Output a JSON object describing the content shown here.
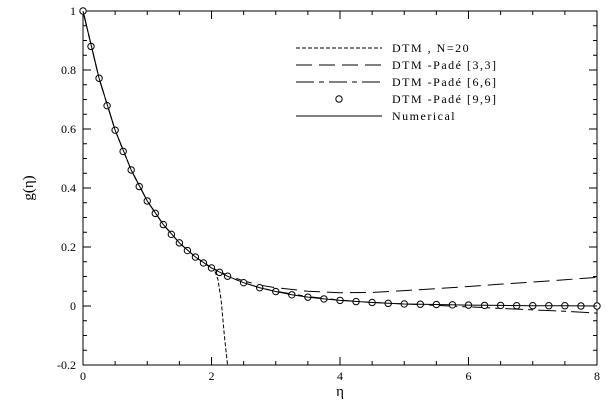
{
  "chart_data": {
    "type": "line",
    "xlabel": "η",
    "ylabel": "g(η)",
    "xlim": [
      0,
      8
    ],
    "ylim": [
      -0.2,
      1
    ],
    "xticks": [
      0,
      2,
      4,
      6,
      8
    ],
    "xtick_labels": [
      "0",
      "2",
      "4",
      "6",
      "8"
    ],
    "yticks": [
      -0.2,
      0,
      0.2,
      0.4,
      0.6,
      0.8,
      1
    ],
    "ytick_labels": [
      "-0.2",
      "0",
      "0.2",
      "0.4",
      "0.6",
      "0.8",
      "1"
    ],
    "grid": false,
    "legend_position": "top-right",
    "series": [
      {
        "name": "DTM , N=20",
        "style": "short-dash",
        "x": [
          0,
          0.25,
          0.5,
          0.75,
          1.0,
          1.25,
          1.5,
          1.75,
          1.9,
          2.0,
          2.05,
          2.1,
          2.15,
          2.2,
          2.25
        ],
        "values": [
          1,
          0.772,
          0.596,
          0.461,
          0.356,
          0.276,
          0.214,
          0.166,
          0.142,
          0.13,
          0.12,
          0.09,
          0.02,
          -0.1,
          -0.2
        ]
      },
      {
        "name": "DTM -Padé [3,3]",
        "style": "long-dash",
        "x": [
          0,
          0.25,
          0.5,
          0.75,
          1.0,
          1.25,
          1.5,
          1.75,
          2.0,
          2.25,
          2.5,
          2.75,
          3.0,
          3.5,
          4.0,
          4.5,
          5.0,
          5.5,
          6.0,
          6.5,
          7.0,
          7.5,
          8.0
        ],
        "values": [
          1,
          0.772,
          0.596,
          0.461,
          0.356,
          0.276,
          0.214,
          0.166,
          0.13,
          0.104,
          0.085,
          0.071,
          0.062,
          0.05,
          0.045,
          0.046,
          0.052,
          0.059,
          0.066,
          0.074,
          0.081,
          0.089,
          0.097
        ]
      },
      {
        "name": "DTM -Padé [6,6]",
        "style": "long-short-dash",
        "x": [
          0,
          0.25,
          0.5,
          0.75,
          1.0,
          1.25,
          1.5,
          1.75,
          2.0,
          2.25,
          2.5,
          2.75,
          3.0,
          3.5,
          4.0,
          4.5,
          5.0,
          5.5,
          6.0,
          6.5,
          7.0,
          7.5,
          8.0
        ],
        "values": [
          1,
          0.772,
          0.596,
          0.461,
          0.356,
          0.276,
          0.214,
          0.166,
          0.129,
          0.101,
          0.079,
          0.062,
          0.05,
          0.032,
          0.02,
          0.012,
          0.007,
          0.002,
          -0.003,
          -0.008,
          -0.013,
          -0.018,
          -0.024
        ]
      },
      {
        "name": "DTM -Padé [9,9]",
        "style": "circle-markers",
        "x": [
          0,
          0.125,
          0.25,
          0.375,
          0.5,
          0.625,
          0.75,
          0.875,
          1.0,
          1.125,
          1.25,
          1.375,
          1.5,
          1.625,
          1.75,
          1.875,
          2.0,
          2.125,
          2.25,
          2.5,
          2.75,
          3.0,
          3.25,
          3.5,
          3.75,
          4.0,
          4.25,
          4.5,
          4.75,
          5.0,
          5.25,
          5.5,
          5.75,
          6.0,
          6.25,
          6.5,
          6.75,
          7.0,
          7.25,
          7.5,
          7.75,
          8.0
        ],
        "values": [
          1,
          0.88,
          0.772,
          0.679,
          0.596,
          0.524,
          0.461,
          0.405,
          0.356,
          0.314,
          0.276,
          0.243,
          0.214,
          0.188,
          0.166,
          0.146,
          0.129,
          0.114,
          0.101,
          0.079,
          0.062,
          0.049,
          0.038,
          0.03,
          0.024,
          0.019,
          0.015,
          0.012,
          0.009,
          0.007,
          0.006,
          0.005,
          0.004,
          0.003,
          0.002,
          0.002,
          0.001,
          0.001,
          0.001,
          0.001,
          0.0,
          0.0
        ]
      },
      {
        "name": "Numerical",
        "style": "solid",
        "x": [
          0,
          0.25,
          0.5,
          0.75,
          1.0,
          1.25,
          1.5,
          1.75,
          2.0,
          2.25,
          2.5,
          2.75,
          3.0,
          3.25,
          3.5,
          3.75,
          4.0,
          4.5,
          5.0,
          5.5,
          6.0,
          6.5,
          7.0,
          7.5,
          8.0
        ],
        "values": [
          1,
          0.772,
          0.596,
          0.461,
          0.356,
          0.276,
          0.214,
          0.166,
          0.129,
          0.101,
          0.079,
          0.062,
          0.049,
          0.038,
          0.03,
          0.024,
          0.019,
          0.012,
          0.007,
          0.005,
          0.003,
          0.002,
          0.001,
          0.001,
          0.0
        ]
      }
    ]
  }
}
